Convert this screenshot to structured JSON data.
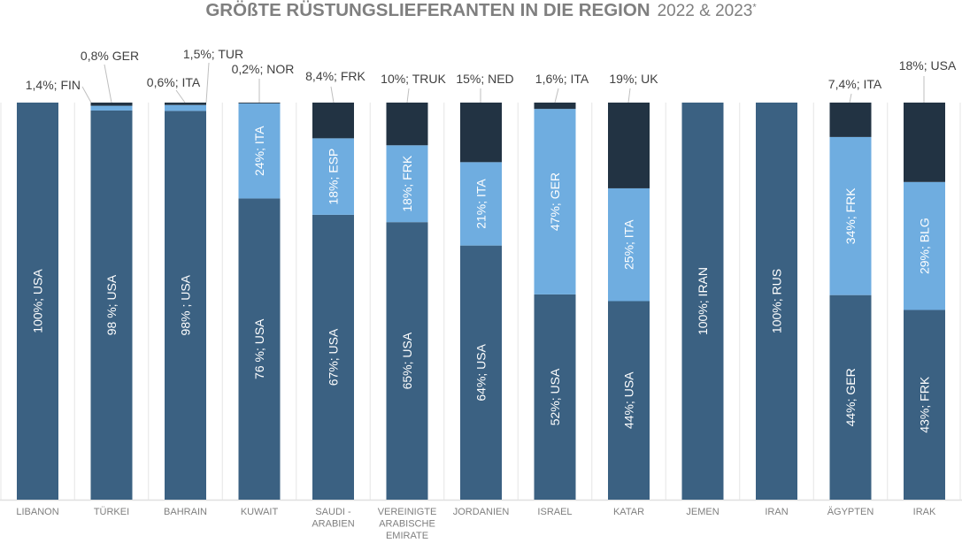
{
  "title": {
    "main": "GRÖßTE RÜSTUNGSLIEFERANTEN IN DIE REGION",
    "years": "2022 & 2023",
    "footnote_mark": "*"
  },
  "chart_data": {
    "type": "bar",
    "stacked": true,
    "normalized": true,
    "grid": false,
    "legend": "none",
    "colors": [
      "#3b6182",
      "#6fade0",
      "#223343"
    ],
    "categories": [
      "LIBANON",
      "TÜRKEI",
      "BAHRAIN",
      "KUWAIT",
      "SAUDI - ARABIEN",
      "VEREINIGTE ARABISCHE EMIRATE",
      "JORDANIEN",
      "ISRAEL",
      "KATAR",
      "JEMEN",
      "IRAN",
      "ÄGYPTEN",
      "IRAK"
    ],
    "category_lines": [
      [
        "LIBANON"
      ],
      [
        "TÜRKEI"
      ],
      [
        "BAHRAIN"
      ],
      [
        "KUWAIT"
      ],
      [
        "SAUDI -",
        "ARABIEN"
      ],
      [
        "VEREINIGTE",
        "ARABISCHE",
        "EMIRATE"
      ],
      [
        "JORDANIEN"
      ],
      [
        "ISRAEL"
      ],
      [
        "KATAR"
      ],
      [
        "JEMEN"
      ],
      [
        "IRAN"
      ],
      [
        "ÄGYPTEN"
      ],
      [
        "IRAK"
      ]
    ],
    "bars": [
      {
        "segments": [
          {
            "value": 100,
            "label": "100%; USA"
          }
        ],
        "external_label": "1,4%; FIN"
      },
      {
        "segments": [
          {
            "value": 98,
            "label": "98 %; USA"
          },
          {
            "value": 1.2,
            "label": ""
          },
          {
            "value": 0.8,
            "label": ""
          }
        ],
        "external_label": "0,8% GER"
      },
      {
        "segments": [
          {
            "value": 98,
            "label": "98% ; USA"
          },
          {
            "value": 1.5,
            "label": ""
          },
          {
            "value": 0.6,
            "label": ""
          }
        ],
        "external_label": "0,6%; ITA",
        "external_label_2": "1,5%; TUR"
      },
      {
        "segments": [
          {
            "value": 76,
            "label": "76 %; USA"
          },
          {
            "value": 24,
            "label": "24%; ITA"
          },
          {
            "value": 0.2,
            "label": ""
          }
        ],
        "external_label": "0,2%; NOR"
      },
      {
        "segments": [
          {
            "value": 67,
            "label": "67%; USA"
          },
          {
            "value": 18,
            "label": "18%; ESP"
          },
          {
            "value": 8.4,
            "label": ""
          }
        ],
        "external_label": "8,4%; FRK"
      },
      {
        "segments": [
          {
            "value": 65,
            "label": "65%; USA"
          },
          {
            "value": 18,
            "label": "18%; FRK"
          },
          {
            "value": 10,
            "label": ""
          }
        ],
        "external_label": "10%; TRUK"
      },
      {
        "segments": [
          {
            "value": 64,
            "label": "64%; USA"
          },
          {
            "value": 21,
            "label": "21%; ITA"
          },
          {
            "value": 15,
            "label": ""
          }
        ],
        "external_label": "15%; NED"
      },
      {
        "segments": [
          {
            "value": 52,
            "label": "52%; USA"
          },
          {
            "value": 47,
            "label": "47%; GER"
          },
          {
            "value": 1.6,
            "label": ""
          }
        ],
        "external_label": "1,6%; ITA"
      },
      {
        "segments": [
          {
            "value": 44,
            "label": "44%; USA"
          },
          {
            "value": 25,
            "label": "25%; ITA"
          },
          {
            "value": 19,
            "label": ""
          }
        ],
        "external_label": "19%; UK"
      },
      {
        "segments": [
          {
            "value": 100,
            "label": "100%; IRAN"
          }
        ]
      },
      {
        "segments": [
          {
            "value": 100,
            "label": "100%; RUS"
          }
        ]
      },
      {
        "segments": [
          {
            "value": 44,
            "label": "44%; GER"
          },
          {
            "value": 34,
            "label": "34%; FRK"
          },
          {
            "value": 7.4,
            "label": ""
          }
        ],
        "external_label": "7,4%; ITA"
      },
      {
        "segments": [
          {
            "value": 43,
            "label": "43%; FRK"
          },
          {
            "value": 29,
            "label": "29%; BLG"
          },
          {
            "value": 18,
            "label": ""
          }
        ],
        "external_label": "18%; USA"
      }
    ]
  }
}
